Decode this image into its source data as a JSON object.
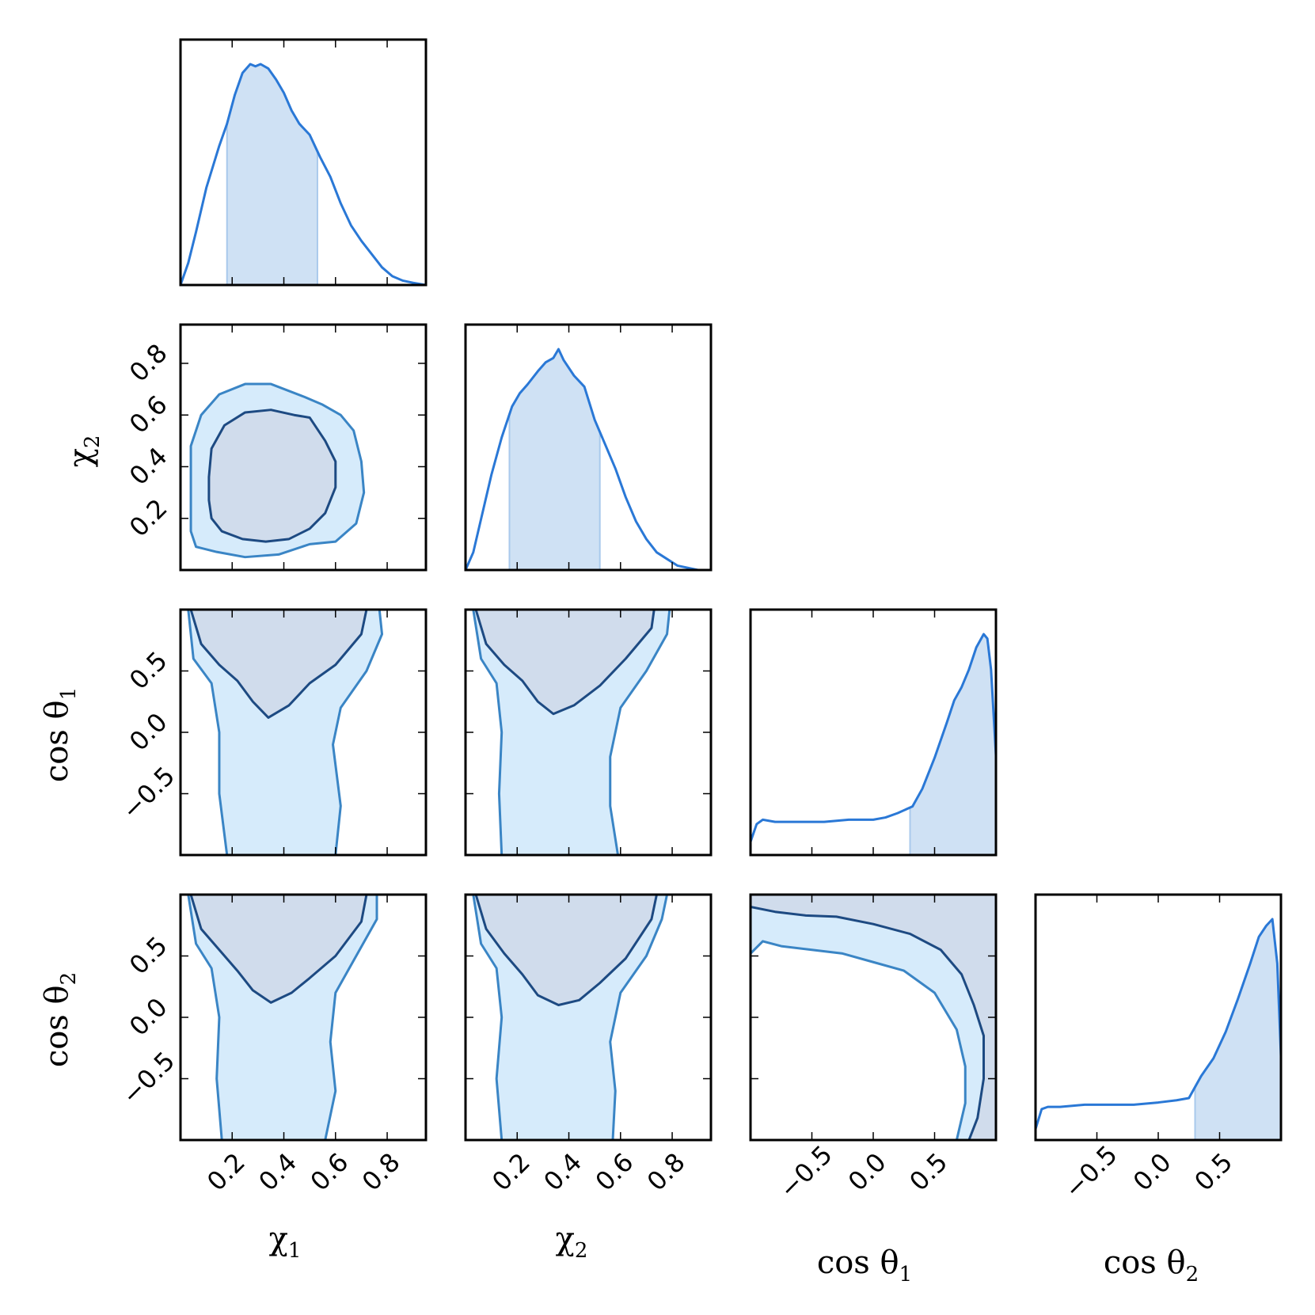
{
  "chart_data": {
    "type": "corner",
    "parameters": [
      "χ1",
      "χ2",
      "cos θ1",
      "cos θ2"
    ],
    "axis_labels": {
      "chi1": {
        "base": "χ",
        "sub": "1"
      },
      "chi2": {
        "base": "χ",
        "sub": "2"
      },
      "cost1": {
        "base": "cos θ",
        "sub": "1"
      },
      "cost2": {
        "base": "cos θ",
        "sub": "2"
      }
    },
    "ranges": {
      "chi1": [
        0.0,
        0.95
      ],
      "chi2": [
        0.0,
        0.95
      ],
      "cost1": [
        -1.0,
        1.0
      ],
      "cost2": [
        -1.0,
        1.0
      ]
    },
    "ticks": {
      "chi": [
        "0.2",
        "0.4",
        "0.6",
        "0.8"
      ],
      "cos": [
        "−0.5",
        "0.0",
        "0.5"
      ]
    },
    "colors": {
      "line": "#2a78d6",
      "fill_1d": "#cfe1f4",
      "contour_inner": "#1d4a82",
      "contour_outer": "#3a85c5",
      "fill_inner": "#d0dcec",
      "fill_outer": "#d6ebfb"
    },
    "marginals": [
      {
        "param": "chi1",
        "x": [
          0.0,
          0.03,
          0.06,
          0.1,
          0.15,
          0.18,
          0.21,
          0.24,
          0.27,
          0.29,
          0.31,
          0.34,
          0.37,
          0.4,
          0.43,
          0.46,
          0.5,
          0.54,
          0.58,
          0.62,
          0.66,
          0.7,
          0.74,
          0.78,
          0.82,
          0.86,
          0.9,
          0.95
        ],
        "y": [
          0.0,
          0.1,
          0.24,
          0.44,
          0.63,
          0.73,
          0.86,
          0.96,
          1.0,
          0.99,
          1.0,
          0.98,
          0.93,
          0.87,
          0.79,
          0.73,
          0.68,
          0.58,
          0.49,
          0.37,
          0.27,
          0.2,
          0.14,
          0.08,
          0.04,
          0.02,
          0.01,
          0.0
        ],
        "band": [
          0.18,
          0.53
        ]
      },
      {
        "param": "chi2",
        "x": [
          0.0,
          0.03,
          0.06,
          0.1,
          0.14,
          0.18,
          0.21,
          0.24,
          0.28,
          0.31,
          0.34,
          0.36,
          0.38,
          0.42,
          0.46,
          0.5,
          0.54,
          0.58,
          0.62,
          0.66,
          0.7,
          0.74,
          0.78,
          0.82,
          0.86,
          0.9,
          0.95
        ],
        "y": [
          0.0,
          0.08,
          0.23,
          0.43,
          0.6,
          0.74,
          0.8,
          0.84,
          0.9,
          0.94,
          0.96,
          1.0,
          0.95,
          0.88,
          0.83,
          0.68,
          0.57,
          0.46,
          0.33,
          0.22,
          0.14,
          0.08,
          0.05,
          0.02,
          0.01,
          0.0,
          0.0
        ],
        "band": [
          0.17,
          0.52
        ]
      },
      {
        "param": "cost1",
        "x": [
          -1.0,
          -0.95,
          -0.9,
          -0.8,
          -0.6,
          -0.4,
          -0.2,
          0.0,
          0.1,
          0.2,
          0.32,
          0.4,
          0.5,
          0.6,
          0.66,
          0.72,
          0.78,
          0.84,
          0.9,
          0.93,
          0.96,
          1.0
        ],
        "y": [
          0.06,
          0.14,
          0.16,
          0.15,
          0.15,
          0.15,
          0.16,
          0.16,
          0.17,
          0.19,
          0.22,
          0.3,
          0.44,
          0.6,
          0.7,
          0.76,
          0.84,
          0.94,
          1.0,
          0.98,
          0.84,
          0.45
        ],
        "band": [
          0.3,
          1.0
        ]
      },
      {
        "param": "cost2",
        "x": [
          -1.0,
          -0.95,
          -0.9,
          -0.8,
          -0.6,
          -0.5,
          -0.4,
          -0.2,
          0.0,
          0.15,
          0.25,
          0.3,
          0.35,
          0.45,
          0.55,
          0.65,
          0.75,
          0.82,
          0.88,
          0.93,
          0.97,
          1.0
        ],
        "y": [
          0.05,
          0.14,
          0.15,
          0.15,
          0.16,
          0.16,
          0.16,
          0.16,
          0.17,
          0.18,
          0.19,
          0.24,
          0.29,
          0.37,
          0.49,
          0.64,
          0.8,
          0.92,
          0.97,
          1.0,
          0.8,
          0.38
        ],
        "band": [
          0.3,
          1.0
        ]
      }
    ],
    "joint_panels": [
      {
        "x": "chi1",
        "y": "chi2",
        "contour_outer": [
          [
            0.04,
            0.15
          ],
          [
            0.06,
            0.09
          ],
          [
            0.14,
            0.07
          ],
          [
            0.25,
            0.05
          ],
          [
            0.38,
            0.06
          ],
          [
            0.5,
            0.1
          ],
          [
            0.6,
            0.11
          ],
          [
            0.68,
            0.18
          ],
          [
            0.71,
            0.3
          ],
          [
            0.7,
            0.42
          ],
          [
            0.67,
            0.54
          ],
          [
            0.62,
            0.6
          ],
          [
            0.55,
            0.64
          ],
          [
            0.48,
            0.67
          ],
          [
            0.35,
            0.72
          ],
          [
            0.25,
            0.72
          ],
          [
            0.15,
            0.68
          ],
          [
            0.08,
            0.6
          ],
          [
            0.04,
            0.48
          ],
          [
            0.04,
            0.3
          ]
        ],
        "contour_inner": [
          [
            0.12,
            0.2
          ],
          [
            0.16,
            0.15
          ],
          [
            0.24,
            0.12
          ],
          [
            0.33,
            0.11
          ],
          [
            0.42,
            0.12
          ],
          [
            0.5,
            0.16
          ],
          [
            0.56,
            0.22
          ],
          [
            0.6,
            0.32
          ],
          [
            0.6,
            0.42
          ],
          [
            0.56,
            0.5
          ],
          [
            0.5,
            0.59
          ],
          [
            0.44,
            0.6
          ],
          [
            0.35,
            0.62
          ],
          [
            0.25,
            0.61
          ],
          [
            0.17,
            0.56
          ],
          [
            0.12,
            0.47
          ],
          [
            0.11,
            0.36
          ],
          [
            0.11,
            0.27
          ]
        ]
      },
      {
        "x": "chi1",
        "y": "cost1",
        "contour_outer": [
          [
            0.03,
            1.0
          ],
          [
            0.05,
            0.6
          ],
          [
            0.12,
            0.4
          ],
          [
            0.15,
            0.0
          ],
          [
            0.15,
            -0.5
          ],
          [
            0.18,
            -1.0
          ],
          [
            0.6,
            -1.0
          ],
          [
            0.62,
            -0.6
          ],
          [
            0.59,
            -0.1
          ],
          [
            0.62,
            0.2
          ],
          [
            0.72,
            0.5
          ],
          [
            0.78,
            0.8
          ],
          [
            0.77,
            1.0
          ]
        ],
        "contour_inner": [
          [
            0.04,
            1.0
          ],
          [
            0.08,
            0.72
          ],
          [
            0.15,
            0.55
          ],
          [
            0.22,
            0.42
          ],
          [
            0.28,
            0.25
          ],
          [
            0.34,
            0.12
          ],
          [
            0.42,
            0.22
          ],
          [
            0.5,
            0.4
          ],
          [
            0.6,
            0.55
          ],
          [
            0.7,
            0.8
          ],
          [
            0.72,
            1.0
          ]
        ]
      },
      {
        "x": "chi1",
        "y": "cost2",
        "contour_outer": [
          [
            0.03,
            1.0
          ],
          [
            0.06,
            0.6
          ],
          [
            0.12,
            0.4
          ],
          [
            0.15,
            0.0
          ],
          [
            0.14,
            -0.5
          ],
          [
            0.16,
            -1.0
          ],
          [
            0.56,
            -1.0
          ],
          [
            0.6,
            -0.6
          ],
          [
            0.58,
            -0.2
          ],
          [
            0.6,
            0.2
          ],
          [
            0.68,
            0.5
          ],
          [
            0.76,
            0.8
          ],
          [
            0.76,
            1.0
          ]
        ],
        "contour_inner": [
          [
            0.04,
            1.0
          ],
          [
            0.08,
            0.72
          ],
          [
            0.15,
            0.55
          ],
          [
            0.22,
            0.38
          ],
          [
            0.28,
            0.22
          ],
          [
            0.35,
            0.12
          ],
          [
            0.43,
            0.2
          ],
          [
            0.5,
            0.32
          ],
          [
            0.6,
            0.5
          ],
          [
            0.7,
            0.78
          ],
          [
            0.72,
            1.0
          ]
        ]
      },
      {
        "x": "chi2",
        "y": "cost1",
        "contour_outer": [
          [
            0.03,
            1.0
          ],
          [
            0.06,
            0.6
          ],
          [
            0.12,
            0.4
          ],
          [
            0.14,
            0.0
          ],
          [
            0.13,
            -0.5
          ],
          [
            0.14,
            -1.0
          ],
          [
            0.59,
            -1.0
          ],
          [
            0.56,
            -0.6
          ],
          [
            0.56,
            -0.2
          ],
          [
            0.6,
            0.2
          ],
          [
            0.7,
            0.5
          ],
          [
            0.78,
            0.8
          ],
          [
            0.79,
            1.0
          ]
        ],
        "contour_inner": [
          [
            0.04,
            1.0
          ],
          [
            0.08,
            0.72
          ],
          [
            0.15,
            0.55
          ],
          [
            0.22,
            0.42
          ],
          [
            0.28,
            0.25
          ],
          [
            0.34,
            0.15
          ],
          [
            0.42,
            0.22
          ],
          [
            0.52,
            0.38
          ],
          [
            0.62,
            0.6
          ],
          [
            0.72,
            0.85
          ],
          [
            0.73,
            1.0
          ]
        ]
      },
      {
        "x": "chi2",
        "y": "cost2",
        "contour_outer": [
          [
            0.03,
            1.0
          ],
          [
            0.06,
            0.6
          ],
          [
            0.12,
            0.4
          ],
          [
            0.14,
            0.0
          ],
          [
            0.12,
            -0.5
          ],
          [
            0.14,
            -1.0
          ],
          [
            0.57,
            -1.0
          ],
          [
            0.58,
            -0.6
          ],
          [
            0.56,
            -0.2
          ],
          [
            0.6,
            0.2
          ],
          [
            0.7,
            0.5
          ],
          [
            0.76,
            0.8
          ],
          [
            0.78,
            1.0
          ]
        ],
        "contour_inner": [
          [
            0.04,
            1.0
          ],
          [
            0.08,
            0.72
          ],
          [
            0.15,
            0.52
          ],
          [
            0.22,
            0.35
          ],
          [
            0.28,
            0.18
          ],
          [
            0.36,
            0.1
          ],
          [
            0.44,
            0.14
          ],
          [
            0.52,
            0.28
          ],
          [
            0.62,
            0.48
          ],
          [
            0.72,
            0.8
          ],
          [
            0.74,
            1.0
          ]
        ]
      },
      {
        "x": "cost1",
        "y": "cost2",
        "contour_outer": [
          [
            -1.0,
            0.52
          ],
          [
            -0.9,
            0.62
          ],
          [
            -0.75,
            0.58
          ],
          [
            -0.5,
            0.55
          ],
          [
            -0.25,
            0.52
          ],
          [
            0.0,
            0.45
          ],
          [
            0.25,
            0.38
          ],
          [
            0.5,
            0.2
          ],
          [
            0.68,
            -0.1
          ],
          [
            0.75,
            -0.4
          ],
          [
            0.75,
            -0.7
          ],
          [
            0.68,
            -1.0
          ],
          [
            1.0,
            -1.0
          ],
          [
            1.0,
            1.0
          ],
          [
            -1.0,
            1.0
          ]
        ],
        "contour_inner": [
          [
            -1.0,
            0.9
          ],
          [
            -0.8,
            0.86
          ],
          [
            -0.55,
            0.83
          ],
          [
            -0.3,
            0.82
          ],
          [
            0.0,
            0.76
          ],
          [
            0.3,
            0.68
          ],
          [
            0.55,
            0.55
          ],
          [
            0.72,
            0.35
          ],
          [
            0.82,
            0.1
          ],
          [
            0.9,
            -0.15
          ],
          [
            0.9,
            -0.5
          ],
          [
            0.85,
            -0.82
          ],
          [
            0.78,
            -1.0
          ],
          [
            1.0,
            -1.0
          ],
          [
            1.0,
            1.0
          ],
          [
            -1.0,
            1.0
          ]
        ]
      }
    ]
  }
}
